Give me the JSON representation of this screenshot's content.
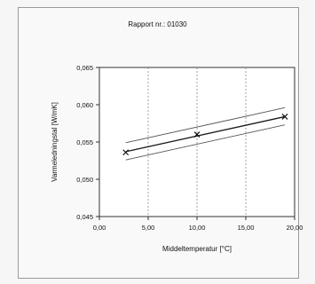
{
  "report": {
    "title": "Rapport nr.: 01030"
  },
  "chart_data": {
    "type": "line",
    "title": "Rapport nr.: 01030",
    "xlabel": "Middeltemperatur [°C]",
    "ylabel": "Varmeledningstal [W/mK]",
    "xlim": [
      0,
      20
    ],
    "ylim": [
      0.045,
      0.065
    ],
    "x_ticks": [
      0,
      5,
      10,
      15,
      20
    ],
    "y_ticks": [
      0.045,
      0.05,
      0.055,
      0.06,
      0.065
    ],
    "x_tick_labels": [
      "0,00",
      "5,00",
      "10,00",
      "15,00",
      "20,00"
    ],
    "y_tick_labels": [
      "0,045",
      "0,050",
      "0,055",
      "0,060",
      "0,065"
    ],
    "grid": "vertical",
    "measured_points": {
      "x": [
        2.7,
        10.0,
        19.0
      ],
      "y": [
        0.0536,
        0.056,
        0.0584
      ]
    },
    "regression_line": {
      "x": [
        2.7,
        19.0
      ],
      "y": [
        0.0537,
        0.0584
      ]
    },
    "upper_band": {
      "x": [
        2.7,
        19.0
      ],
      "y": [
        0.0549,
        0.0596
      ]
    },
    "lower_band": {
      "x": [
        2.7,
        19.0
      ],
      "y": [
        0.0526,
        0.0573
      ]
    },
    "colors": {
      "line": "#1a1a1a",
      "band": "#555555",
      "grid": "#8a8a8a"
    }
  }
}
